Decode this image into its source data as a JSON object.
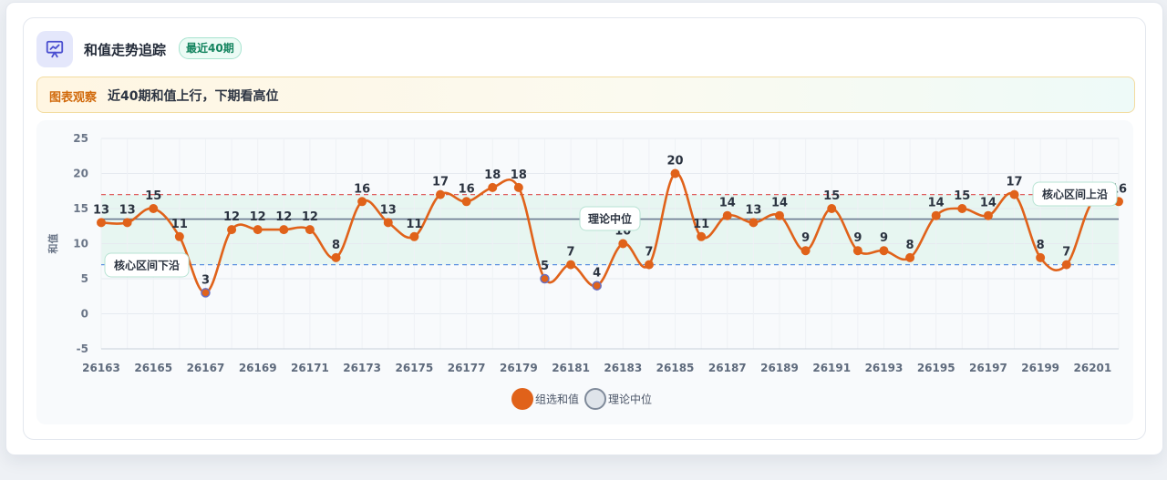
{
  "header": {
    "title": "和值走势追踪",
    "badge": "最近40期",
    "icon": "chart-presentation-icon"
  },
  "observation": {
    "label": "图表观察",
    "text": "近40期和值上行，下期看高位"
  },
  "colors": {
    "series": "#e0621a",
    "median": "#6b7a90",
    "upper": "#e06060",
    "lower": "#5b8fe0",
    "band": "#dff3ec"
  },
  "chart_data": {
    "type": "line",
    "x": [
      "26163",
      "26164",
      "26165",
      "26166",
      "26167",
      "26168",
      "26169",
      "26170",
      "26171",
      "26172",
      "26173",
      "26174",
      "26175",
      "26176",
      "26177",
      "26178",
      "26179",
      "26180",
      "26181",
      "26182",
      "26183",
      "26184",
      "26185",
      "26186",
      "26187",
      "26188",
      "26189",
      "26190",
      "26191",
      "26192",
      "26193",
      "26194",
      "26195",
      "26196",
      "26197",
      "26198",
      "26199",
      "26200",
      "26201",
      "26202"
    ],
    "x_tick_labels": [
      "26163",
      "26165",
      "26167",
      "26169",
      "26171",
      "26173",
      "26175",
      "26177",
      "26179",
      "26181",
      "26183",
      "26185",
      "26187",
      "26189",
      "26191",
      "26193",
      "26195",
      "26197",
      "26199",
      "26201"
    ],
    "series": [
      {
        "name": "组选和值",
        "values": [
          13,
          13,
          15,
          11,
          3,
          12,
          12,
          12,
          12,
          8,
          16,
          13,
          11,
          17,
          16,
          18,
          18,
          5,
          7,
          4,
          10,
          7,
          20,
          11,
          14,
          13,
          14,
          9,
          15,
          9,
          9,
          8,
          14,
          15,
          14,
          17,
          8,
          7,
          16,
          16
        ]
      }
    ],
    "reference_lines": [
      {
        "name": "理论中位",
        "value": 13.5,
        "label": "理论中位"
      },
      {
        "name": "核心区间上沿",
        "value": 17,
        "label": "核心区间上沿"
      },
      {
        "name": "核心区间下沿",
        "value": 7,
        "label": "核心区间下沿"
      }
    ],
    "legend": [
      "组选和值",
      "理论中位"
    ],
    "legend_position": "bottom",
    "ylabel": "和值",
    "xlabel": "",
    "ylim": [
      -5,
      25
    ],
    "yticks": [
      -5,
      0,
      5,
      10,
      15,
      20,
      25
    ],
    "grid": true
  }
}
